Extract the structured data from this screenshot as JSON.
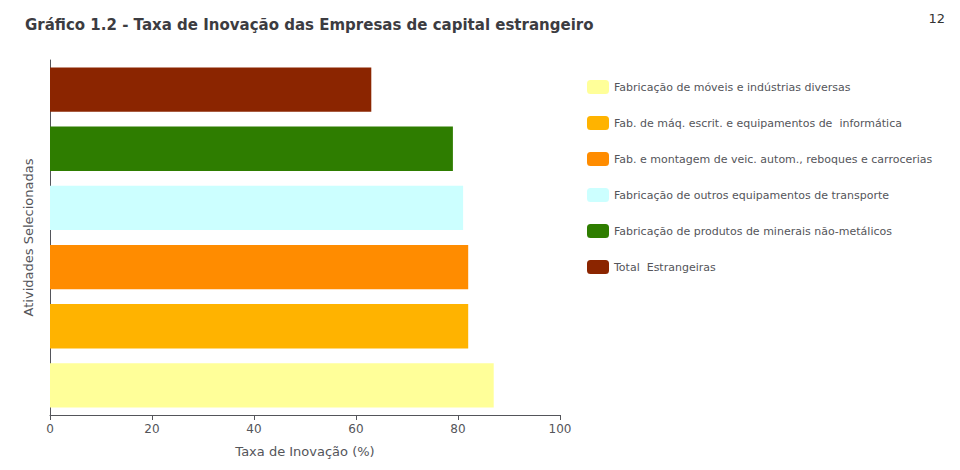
{
  "chart_data": {
    "type": "bar",
    "orientation": "horizontal",
    "title": "Gráfico 1.2 - Taxa de Inovação das Empresas de capital estrangeiro",
    "xlabel": "Taxa de Inovação (%)",
    "ylabel": "Atividades Selecionadas",
    "annotations": [
      "12"
    ],
    "categories": [
      "Fabricação de móveis e indústrias diversas",
      "Fab. de máq. escrit. e equipamentos de  informática",
      "Fab. e montagem de veic. autom., reboques e carrocerias",
      "Fabricação de outros equipamentos de transporte",
      "Fabricação de produtos de minerais não-metálicos",
      "Total  Estrangeiras"
    ],
    "values": [
      87,
      82,
      82,
      81,
      79,
      63
    ],
    "colors": [
      "#FFFF99",
      "#FFB300",
      "#FF8C00",
      "#CCFFFF",
      "#2E7D00",
      "#8B2500"
    ],
    "xlim": [
      0,
      100
    ],
    "xticks": [
      0,
      20,
      40,
      60,
      80,
      100
    ],
    "tick_labels": "x",
    "grid": false,
    "legend": "right"
  }
}
